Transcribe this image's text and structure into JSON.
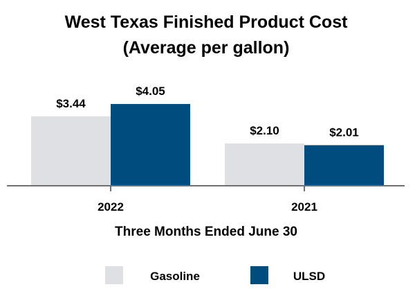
{
  "chart_data": {
    "type": "bar",
    "title": "West Texas Finished Product Cost",
    "subtitle": "(Average per gallon)",
    "categories": [
      "2022",
      "2021"
    ],
    "series": [
      {
        "name": "Gasoline",
        "color": "#dfe0e4",
        "values": [
          3.44,
          2.1
        ],
        "labels": [
          "$3.44",
          "$2.10"
        ]
      },
      {
        "name": "ULSD",
        "color": "#004c7f",
        "values": [
          4.05,
          2.01
        ],
        "labels": [
          "$4.05",
          "$2.01"
        ]
      }
    ],
    "xlabel": "Three Months Ended June 30",
    "ylabel": "",
    "ylim": [
      0,
      4.05
    ],
    "grid": false,
    "legend_position": "bottom"
  }
}
